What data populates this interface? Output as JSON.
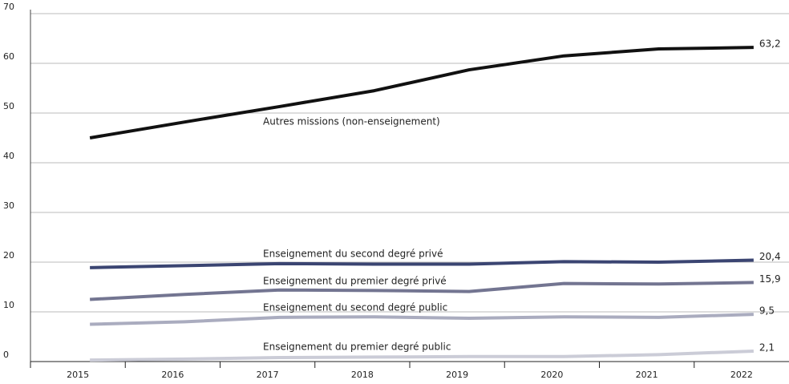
{
  "chart_data": {
    "type": "line",
    "categories": [
      "2015",
      "2016",
      "2017",
      "2018",
      "2019",
      "2020",
      "2021",
      "2022"
    ],
    "series": [
      {
        "name": "Autres missions (non-enseignement)",
        "color": "#111111",
        "values": [
          45.0,
          48.2,
          51.3,
          54.5,
          58.7,
          61.5,
          62.9,
          63.2
        ],
        "value_labels": [
          null,
          null,
          null,
          null,
          null,
          null,
          null,
          "63,2"
        ]
      },
      {
        "name": "Enseignement du second degré privé",
        "color": "#3b4572",
        "values": [
          18.9,
          19.3,
          19.7,
          19.6,
          19.6,
          20.1,
          20.0,
          20.4
        ],
        "value_labels": [
          null,
          null,
          null,
          null,
          null,
          null,
          null,
          "20,4"
        ]
      },
      {
        "name": "Enseignement du premier degré privé",
        "color": "#737591",
        "values": [
          12.5,
          13.5,
          14.4,
          14.3,
          14.1,
          15.7,
          15.6,
          15.9
        ],
        "value_labels": [
          null,
          null,
          null,
          null,
          null,
          null,
          null,
          "15,9"
        ]
      },
      {
        "name": "Enseignement du second degré public",
        "color": "#aaacbf",
        "values": [
          7.5,
          8.0,
          8.9,
          9.0,
          8.7,
          9.0,
          8.9,
          9.5
        ],
        "value_labels": [
          null,
          null,
          null,
          null,
          null,
          null,
          null,
          "9,5"
        ]
      },
      {
        "name": "Enseignement du premier degré public",
        "color": "#cbccd7",
        "values": [
          0.3,
          0.5,
          0.8,
          0.9,
          1.0,
          1.0,
          1.4,
          2.1
        ],
        "value_labels": [
          null,
          null,
          null,
          null,
          null,
          null,
          null,
          "2,1"
        ]
      }
    ],
    "ylim": [
      0,
      70
    ],
    "yticks": [
      0,
      10,
      20,
      30,
      40,
      50,
      60,
      70
    ],
    "grid": true
  }
}
